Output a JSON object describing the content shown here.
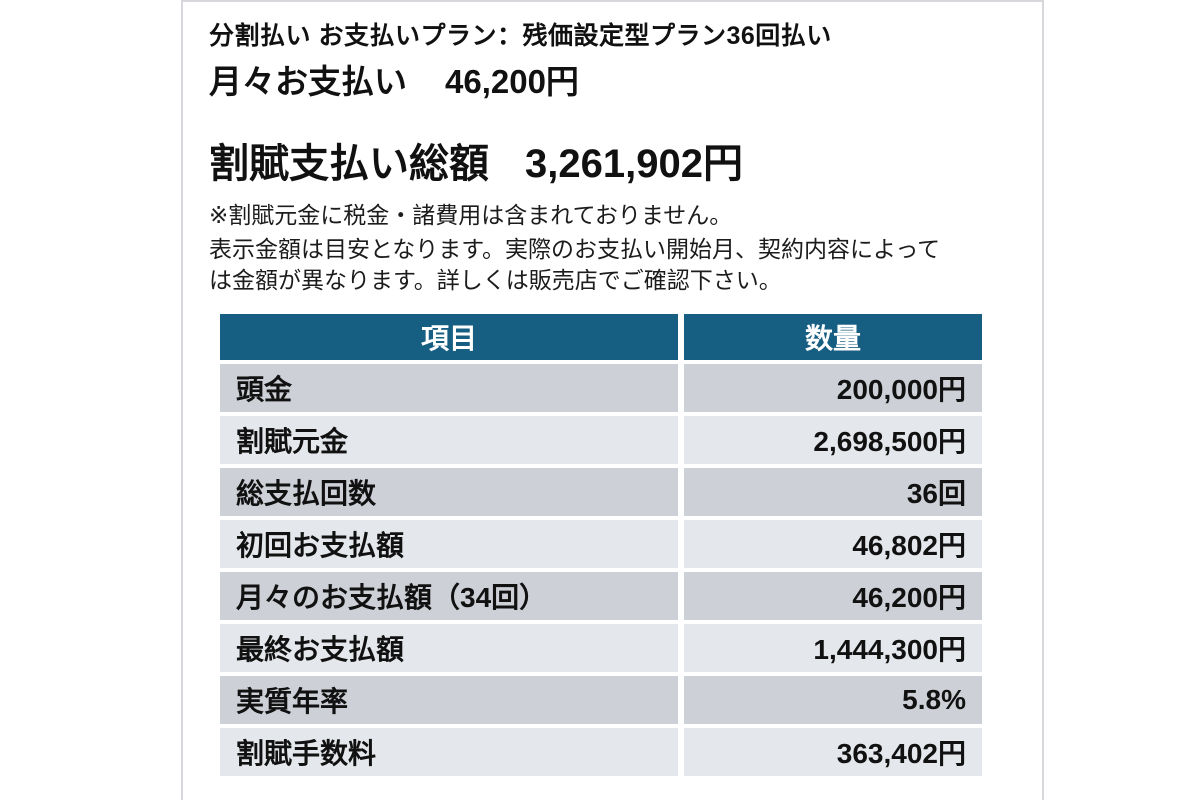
{
  "header": {
    "plan_subtitle": "分割払い お支払いプラン：残価設定型プラン36回払い",
    "monthly_payment": {
      "label": "月々お支払い",
      "value": "46,200円"
    },
    "total_payment": {
      "label": "割賦支払い総額",
      "value": "3,261,902円"
    },
    "note_asterisk": "※割賦元金に税金・諸費用は含まれておりません。",
    "disclaimer_line1": "表示金額は目安となります。実際のお支払い開始月、契約内容によって",
    "disclaimer_line2": "は金額が異なります。詳しくは販売店でご確認下さい。"
  },
  "table": {
    "headers": {
      "item": "項目",
      "value": "数量"
    },
    "rows": [
      {
        "item": "頭金",
        "value": "200,000円"
      },
      {
        "item": "割賦元金",
        "value": "2,698,500円"
      },
      {
        "item": "総支払回数",
        "value": "36回"
      },
      {
        "item": "初回お支払額",
        "value": "46,802円"
      },
      {
        "item": "月々のお支払額（34回）",
        "value": "46,200円"
      },
      {
        "item": "最終お支払額",
        "value": "1,444,300円"
      },
      {
        "item": "実質年率",
        "value": "5.8%"
      },
      {
        "item": "割賦手数料",
        "value": "363,402円"
      }
    ]
  },
  "colors": {
    "header_bg": "#175e83",
    "row_dark": "#cdd1d7",
    "row_light": "#e4e7eb",
    "card_border": "#d6d8db",
    "text": "#111111"
  }
}
